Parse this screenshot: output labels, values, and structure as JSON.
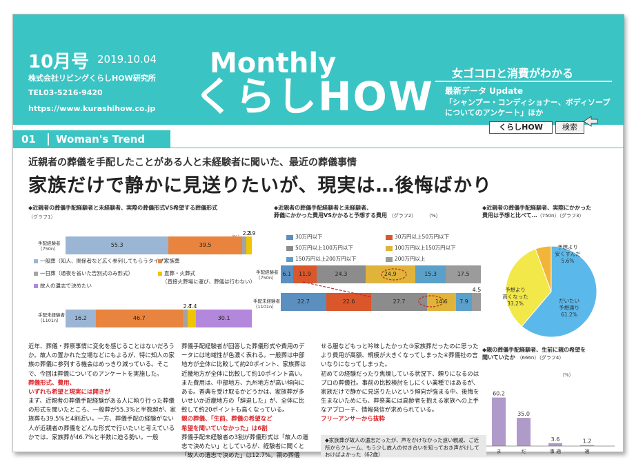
{
  "header": {
    "issue": "10月号",
    "date": "2019.10.04",
    "company": "株式会社リビングくらしHOW研究所",
    "tel": "TEL03-5216-9420",
    "url": "https://www.kurashihow.co.jp",
    "title_en": "Monthly",
    "title_jp": "くらしHOW",
    "tagline": "女ゴコロと消費がわかる",
    "update_title": "最新データ Update",
    "update_body": "「シャンプー・コンディショナー、ボディソープについてのアンケート」ほか",
    "search_value": "くらしHOW",
    "search_button": "検索"
  },
  "section": {
    "number": "01",
    "title": "Woman's Trend",
    "subhead": "近親者の葬儀を手配したことがある人と未経験者に聞いた、最近の葬儀事情",
    "headline": "家族だけで静かに見送りたいが、現実は…後悔ばかり"
  },
  "chart1": {
    "title": "◆近親者の葬儀手配経験者と未経験者、実際の葬儀形式VS希望する葬儀形式",
    "fig": "（グラフ1）",
    "unit": "（%）",
    "row1_label": [
      "手配経験者",
      "（750n）"
    ],
    "row2_label": [
      "手配未経験者",
      "（1101n）"
    ],
    "legend": [
      {
        "label": "一般葬（知人、関係者など広く参列してもらうタイプ）",
        "color": "#9bb6d4"
      },
      {
        "label": "家族葬",
        "color": "#e8843e"
      },
      {
        "label": "一日葬（通夜を省いた告別式のみ形式）",
        "color": "#a3a3a3"
      },
      {
        "label": "直葬・火葬式",
        "color": "#f0c400"
      },
      {
        "label": "（直接火葬場に運び、葬儀は行わない）",
        "color": ""
      },
      {
        "label": "故人の遺志で決めたい",
        "color": "#b387db"
      }
    ]
  },
  "chart2": {
    "title": [
      "◆近親者の葬儀手配経験者と未経験者、",
      "葬儀にかかった費用VSかかると予想する費用"
    ],
    "fig": "（グラフ2）",
    "unit": "（%）",
    "row1_label": [
      "手配経験者",
      "（750n）"
    ],
    "row2_label": [
      "手配未経験者",
      "（1101n）"
    ],
    "legend": [
      {
        "label": "30万円以下",
        "color": "#5b8fbf"
      },
      {
        "label": "30万円以上50万円以下",
        "color": "#d9572b"
      },
      {
        "label": "50万円以上100万円以下",
        "color": "#8c8c8c"
      },
      {
        "label": "100万円以上150万円以下",
        "color": "#e0b43a"
      },
      {
        "label": "150万円以上200万円以下",
        "color": "#5ba0c8"
      },
      {
        "label": "200万円以上",
        "color": "#9b9b9b"
      }
    ]
  },
  "chart3": {
    "title": [
      "◆近親者の葬儀手配経験者、実際にかかった",
      "費用は予想と比べて…"
    ],
    "fig": "（750n）（グラフ3）",
    "slices": [
      {
        "label": [
          "だいたい",
          "予想通り",
          "61.2%"
        ],
        "value": 61.2,
        "color": "#5bb8ea"
      },
      {
        "label": [
          "予想より",
          "高くなった",
          "33.2%"
        ],
        "value": 33.2,
        "color": "#f2e84a"
      },
      {
        "label": [
          "予想より",
          "安くすんだ",
          "5.6%"
        ],
        "value": 5.6,
        "color": "#f2b53a"
      }
    ]
  },
  "chart4": {
    "title": [
      "◆親の葬儀手配経験者、生前に親の希望を",
      "聞いていたか"
    ],
    "fig": "（666n）（グラフ4）",
    "unit": "（%）"
  },
  "chart_data": [
    {
      "type": "bar",
      "orientation": "horizontal",
      "stacked": true,
      "categories": [
        "手配経験者（750n）",
        "手配未経験者（1101n）"
      ],
      "series": [
        {
          "name": "一般葬（知人、関係者など広く参列してもらうタイプ）",
          "values": [
            55.3,
            16.2
          ]
        },
        {
          "name": "家族葬",
          "values": [
            39.5,
            46.7
          ]
        },
        {
          "name": "一日葬（通夜を省いた告別式のみ形式）",
          "values": [
            2.3,
            2.7
          ]
        },
        {
          "name": "直葬・火葬式",
          "values": [
            2.9,
            4.4
          ]
        },
        {
          "name": "故人の遺志で決めたい",
          "values": [
            0,
            30.1
          ]
        }
      ]
    },
    {
      "type": "bar",
      "orientation": "horizontal",
      "stacked": true,
      "categories": [
        "手配経験者（750n）",
        "手配未経験者（1101n）"
      ],
      "series": [
        {
          "name": "30万円以下",
          "values": [
            6.1,
            22.7
          ]
        },
        {
          "name": "30万円以上50万円以下",
          "values": [
            11.9,
            22.6
          ]
        },
        {
          "name": "50万円以上100万円以下",
          "values": [
            24.3,
            27.7
          ]
        },
        {
          "name": "100万円以上150万円以下",
          "values": [
            24.9,
            14.6
          ]
        },
        {
          "name": "150万円以上200万円以下",
          "values": [
            15.3,
            7.9
          ]
        },
        {
          "name": "200万円以上",
          "values": [
            17.5,
            4.5
          ]
        }
      ]
    },
    {
      "type": "pie",
      "categories": [
        "だいたい予想通り",
        "予想より高くなった",
        "予想より安くすんだ"
      ],
      "values": [
        61.2,
        33.2,
        5.6
      ]
    },
    {
      "type": "bar",
      "categories": [
        "ま",
        "だ",
        "事 適",
        "適"
      ],
      "values": [
        60.2,
        35.0,
        3.6,
        1.2
      ],
      "ylim": [
        0,
        65
      ]
    }
  ],
  "body": {
    "col1": [
      "近年、葬儀・葬祭事情に変化を感じることはないだろうか。故人の置かれた立場などにもよるが、特に知人の家族の葬儀に参列する機会はめっきり減っている。そこで、今回は葬儀についてのアンケートを実施した。",
      "葬儀形式、費用、",
      "いずれも希望と現実には開きが",
      "まず、近親者の葬儀手配経験がある人に執り行った葬儀の形式を聞いたところ、一般葬が55.3%と半数超が、家族葬も39.5%と4割近い。一方、葬儀手配の経験がない人が近親者の葬儀をどんな形式で行いたいと考えているかでは、家族葬が46.7%と半数に迫る勢い。一般"
    ],
    "col2": [
      "葬儀手配経験者が回答した葬儀形式や費用のデータには地域性が色濃く表れる。一般葬は中部地方が全体に比較して約20ポイント、家族葬は近畿地方が全体に比較して約10ポイント高い。また費用は、中部地方、九州地方が高い傾向にある。香典を受け取るかどうかは、家族葬が多いせいか近畿地方の「辞退した」が、全体に比較して約20ポイントも高くなっている。",
      "親の葬儀、「生前、葬儀の希望など",
      "希望を聞いていなかった」は6割",
      "葬儀手配未経験者の3割が葬儀形式は「故人の遺志で決めたい」としているが、経験者に聞くと「故人の遺志で決めた」は12.7%。親の葬儀"
    ],
    "col3": [
      "せる服などもっと吟味したかった③家族葬だったのに思ったより費用が高額、規模が大きくなってしまった④葬儀社の言いなりになってしまった。",
      "初めての経験だったり焦燥している状況下、頼りになるのはプロの葬儀社。事前の比較検討をしにくい業種ではあるが、家族だけで静かに見送りたいという傾向が強まる中、後悔を生まないためにも、葬祭業には高齢者を抱える家族への上手なアプローチ、情報発信が求められている。",
      "フリーアンサーから抜粋"
    ],
    "free_answer": "◆家族葬が故人の遺志だったが、声をかけなかった遠い親戚、ご近所からクレーム、もう少し故人の付き合いを知っておき声がけしておけばよかった（62歳）"
  }
}
